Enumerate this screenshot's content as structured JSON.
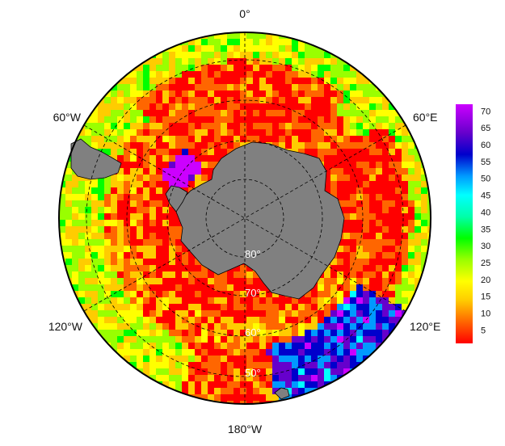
{
  "map": {
    "projection": "south-polar-stereographic",
    "longitude_labels": [
      {
        "key": "lon-0",
        "text": "0°"
      },
      {
        "key": "lon-60e",
        "text": "60°E"
      },
      {
        "key": "lon-120e",
        "text": "120°E"
      },
      {
        "key": "lon-180w",
        "text": "180°W"
      },
      {
        "key": "lon-120w",
        "text": "120°W"
      },
      {
        "key": "lon-60w",
        "text": "60°W"
      }
    ],
    "latitude_labels": [
      {
        "key": "lat-80",
        "text": "80°"
      },
      {
        "key": "lat-70",
        "text": "70°"
      },
      {
        "key": "lat-60",
        "text": "60°"
      },
      {
        "key": "lat-50",
        "text": "50°"
      }
    ],
    "land_color": "#808080",
    "graticule_style": "dashed"
  },
  "colorbar": {
    "ticks": [
      "70",
      "65",
      "60",
      "55",
      "50",
      "45",
      "40",
      "35",
      "30",
      "25",
      "20",
      "15",
      "10",
      "5"
    ],
    "range": [
      1,
      72
    ],
    "colors": [
      "#ff0000",
      "#ff6600",
      "#ffcc00",
      "#ffff00",
      "#99ff00",
      "#00ff00",
      "#00ffaa",
      "#00ffff",
      "#0099ff",
      "#0000cc",
      "#6600cc",
      "#cc00ff"
    ]
  }
}
